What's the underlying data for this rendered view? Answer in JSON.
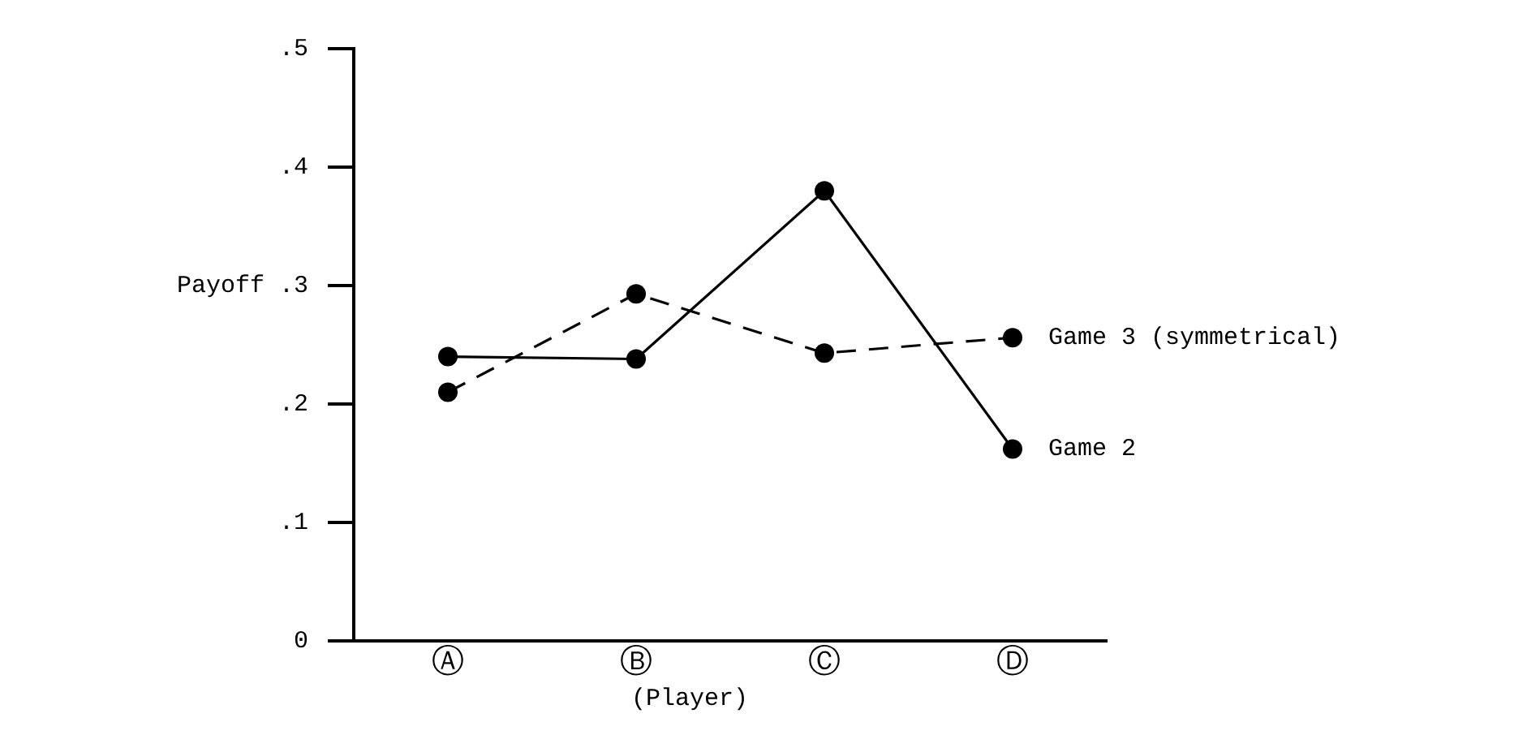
{
  "chart_data": {
    "type": "line",
    "xlabel": "(Player)",
    "ylabel": "Payoff",
    "categories": [
      "Ⓐ",
      "Ⓑ",
      "Ⓒ",
      "Ⓓ"
    ],
    "series": [
      {
        "name": "Game 2",
        "color": "#000000",
        "values": [
          0.24,
          0.238,
          0.38,
          0.162
        ],
        "line_style": "solid"
      },
      {
        "name": "Game 3 (symmetrical)",
        "color": "#000000",
        "values": [
          0.21,
          0.293,
          0.243,
          0.256
        ],
        "line_style": "dashed"
      }
    ],
    "ylim": [
      0,
      0.5
    ],
    "yticks": [
      {
        "value": 0,
        "label": "0"
      },
      {
        "value": 0.1,
        "label": ".1"
      },
      {
        "value": 0.2,
        "label": ".2"
      },
      {
        "value": 0.3,
        "label": ".3"
      },
      {
        "value": 0.4,
        "label": ".4"
      },
      {
        "value": 0.5,
        "label": ".5"
      }
    ],
    "grid": false,
    "legend": false,
    "marker": "circle"
  }
}
